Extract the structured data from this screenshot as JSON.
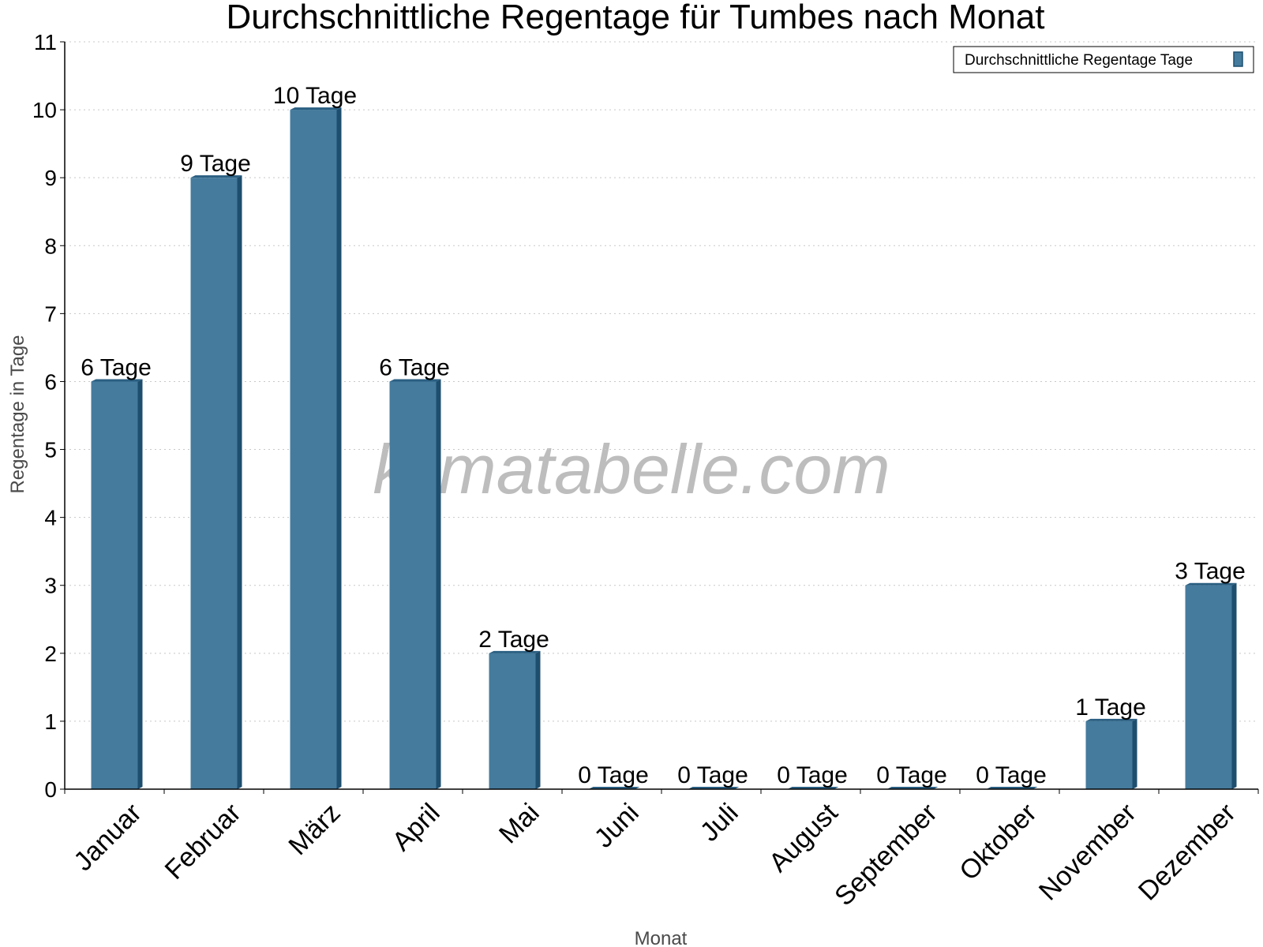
{
  "chart_data": {
    "type": "bar",
    "title": "Durchschnittliche Regentage für Tumbes nach Monat",
    "xlabel": "Monat",
    "ylabel": "Regentage in Tage",
    "ylim": [
      0,
      11
    ],
    "yticks": [
      0,
      1,
      2,
      3,
      4,
      5,
      6,
      7,
      8,
      9,
      10,
      11
    ],
    "grid": true,
    "legend_position": "top-right",
    "watermark": "klimatabelle.com",
    "categories": [
      "Januar",
      "Februar",
      "März",
      "April",
      "Mai",
      "Juni",
      "Juli",
      "August",
      "September",
      "Oktober",
      "November",
      "Dezember"
    ],
    "series": [
      {
        "name": "Durchschnittliche Regentage Tage",
        "values": [
          6,
          9,
          10,
          6,
          2,
          0,
          0,
          0,
          0,
          0,
          1,
          3
        ],
        "data_labels": [
          "6 Tage",
          "9 Tage",
          "10 Tage",
          "6 Tage",
          "2 Tage",
          "0 Tage",
          "0 Tage",
          "0 Tage",
          "0 Tage",
          "0 Tage",
          "1 Tage",
          "3 Tage"
        ],
        "color": "#457b9d",
        "side_color": "#1d4e6e",
        "top_color": "#2a5f82"
      }
    ]
  }
}
